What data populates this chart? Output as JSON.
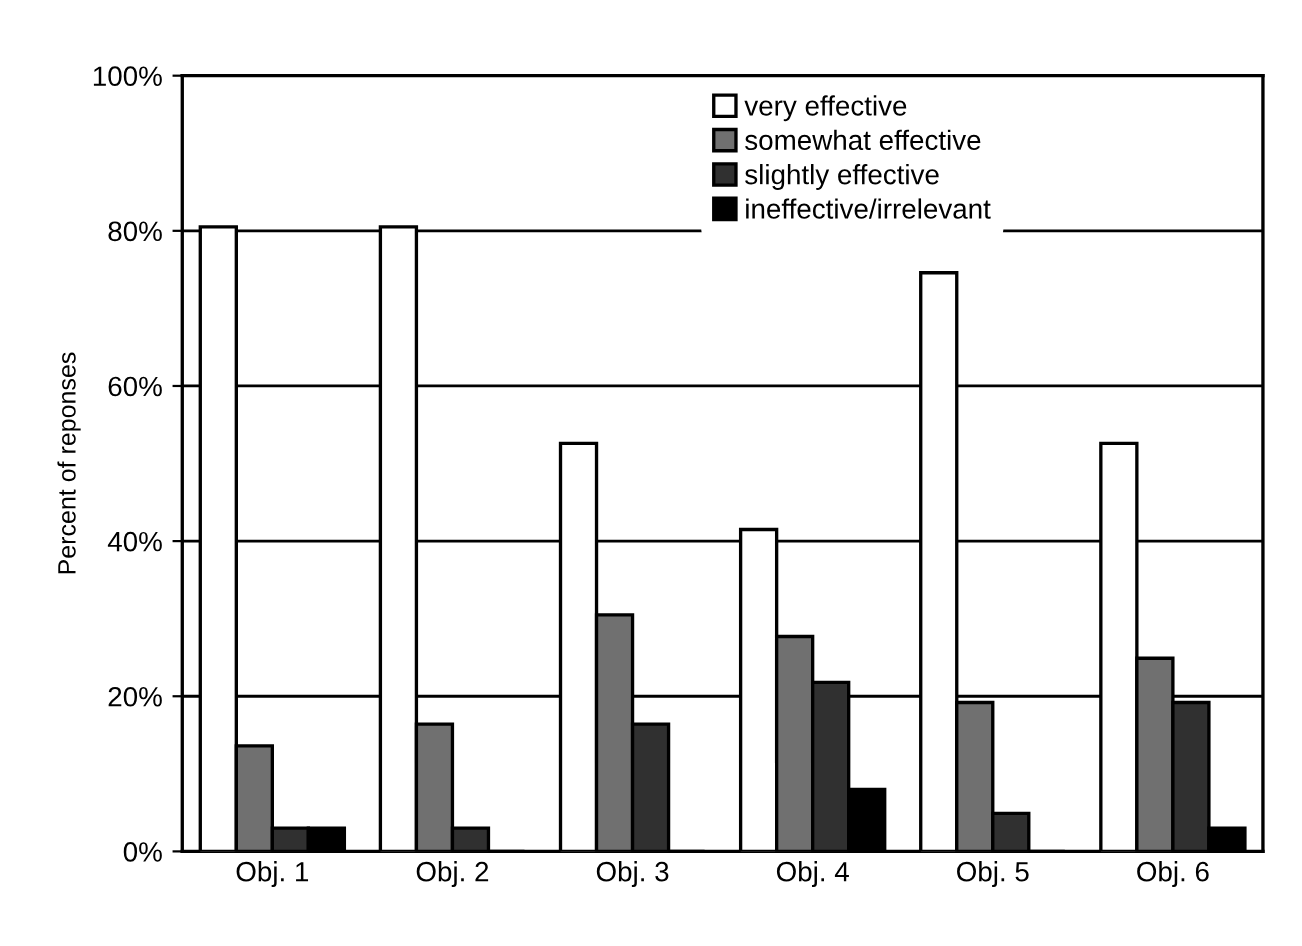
{
  "chart_data": {
    "type": "bar",
    "ylabel": "Percent of reponses",
    "categories": [
      "Obj. 1",
      "Obj. 2",
      "Obj. 3",
      "Obj. 4",
      "Obj. 5",
      "Obj. 6"
    ],
    "series": [
      {
        "name": "very effective",
        "color": "#ffffff",
        "values": [
          80.5,
          80.5,
          52.6,
          41.5,
          74.6,
          52.6
        ]
      },
      {
        "name": "somewhat effective",
        "color": "#707070",
        "values": [
          13.6,
          16.4,
          30.5,
          27.7,
          19.2,
          24.9
        ]
      },
      {
        "name": "slightly effective",
        "color": "#303030",
        "values": [
          3,
          3,
          16.4,
          21.8,
          4.9,
          19.2
        ]
      },
      {
        "name": "ineffective/irrelevant",
        "color": "#000000",
        "values": [
          3,
          0,
          0,
          8,
          0,
          3
        ]
      }
    ],
    "ylim": [
      0,
      100
    ],
    "yticks": [
      {
        "value": 0,
        "label": "0%"
      },
      {
        "value": 20,
        "label": "20%"
      },
      {
        "value": 40,
        "label": "40%"
      },
      {
        "value": 60,
        "label": "60%"
      },
      {
        "value": 80,
        "label": "80%"
      },
      {
        "value": 100,
        "label": "100%"
      }
    ],
    "grid": "y",
    "legend": "top"
  }
}
